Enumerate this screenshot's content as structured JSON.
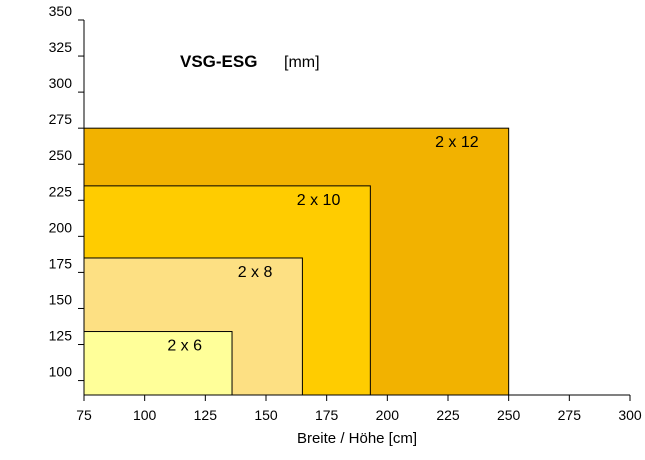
{
  "chart_data": {
    "type": "area",
    "title": "VSG-ESG",
    "unit": "[mm]",
    "xlabel": "Breite / Höhe [cm]",
    "ylabel": "",
    "xlim": [
      75,
      300
    ],
    "ylim": [
      90,
      350
    ],
    "xticks": [
      "75",
      "100",
      "125",
      "150",
      "175",
      "200",
      "225",
      "250",
      "275",
      "300"
    ],
    "yticks": [
      "100",
      "125",
      "150",
      "175",
      "200",
      "225",
      "250",
      "275",
      "300",
      "325",
      "350"
    ],
    "series": [
      {
        "name": "2 x 12",
        "width": 250,
        "height": 275,
        "color": "#F2B200"
      },
      {
        "name": "2 x 10",
        "width": 193,
        "height": 235,
        "color": "#FFCC00"
      },
      {
        "name": "2 x 8",
        "width": 165,
        "height": 185,
        "color": "#FDE083"
      },
      {
        "name": "2 x 6",
        "width": 136,
        "height": 134,
        "color": "#FFFF99"
      }
    ],
    "grid": false,
    "legend": "none"
  }
}
